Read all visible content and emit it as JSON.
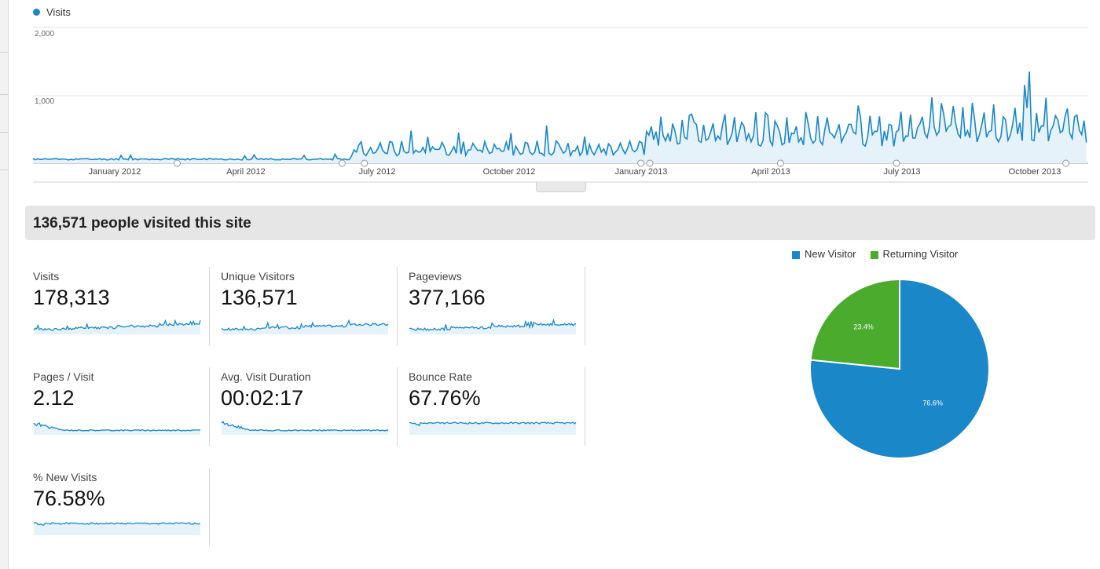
{
  "legend": {
    "visits_label": "Visits",
    "visits_color": "#1a87c9"
  },
  "main_chart": {
    "y_ticks": [
      "2,000",
      "1,000"
    ],
    "x_ticks": [
      "January 2012",
      "April 2012",
      "July 2012",
      "October 2012",
      "January 2013",
      "April 2013",
      "July 2013",
      "October 2013"
    ]
  },
  "summary": {
    "headline": "136,571 people visited this site"
  },
  "metrics": [
    {
      "label": "Visits",
      "value": "178,313"
    },
    {
      "label": "Unique Visitors",
      "value": "136,571"
    },
    {
      "label": "Pageviews",
      "value": "377,166"
    },
    {
      "label": "Pages / Visit",
      "value": "2.12"
    },
    {
      "label": "Avg. Visit Duration",
      "value": "00:02:17"
    },
    {
      "label": "Bounce Rate",
      "value": "67.76%"
    },
    {
      "label": "% New Visits",
      "value": "76.58%"
    }
  ],
  "pie": {
    "legend": [
      {
        "label": "New Visitor",
        "color": "#1a87c9"
      },
      {
        "label": "Returning Visitor",
        "color": "#4aab2c"
      }
    ],
    "slices": [
      {
        "label": "New Visitor",
        "value": 76.6,
        "text": "76.6%",
        "color": "#1a87c9"
      },
      {
        "label": "Returning Visitor",
        "value": 23.4,
        "text": "23.4%",
        "color": "#4aab2c"
      }
    ]
  },
  "chart_data": [
    {
      "type": "area",
      "title": "",
      "series": [
        {
          "name": "Visits"
        }
      ],
      "x_range": [
        "2011-11-15",
        "2013-10-25"
      ],
      "ylim": [
        0,
        2000
      ],
      "segments": [
        {
          "from": "2011-11-15",
          "to": "2012-06-15",
          "approx_visits": 60
        },
        {
          "from": "2012-06-15",
          "to": "2012-12-31",
          "approx_visits": 200
        },
        {
          "from": "2013-01-01",
          "to": "2013-06-30",
          "approx_visits": 450
        },
        {
          "from": "2013-07-01",
          "to": "2013-10-25",
          "approx_visits": 550
        }
      ],
      "peak": {
        "x": "2013-09-15",
        "y": 1350
      }
    },
    {
      "type": "pie",
      "categories": [
        "New Visitor",
        "Returning Visitor"
      ],
      "values": [
        76.6,
        23.4
      ]
    }
  ]
}
